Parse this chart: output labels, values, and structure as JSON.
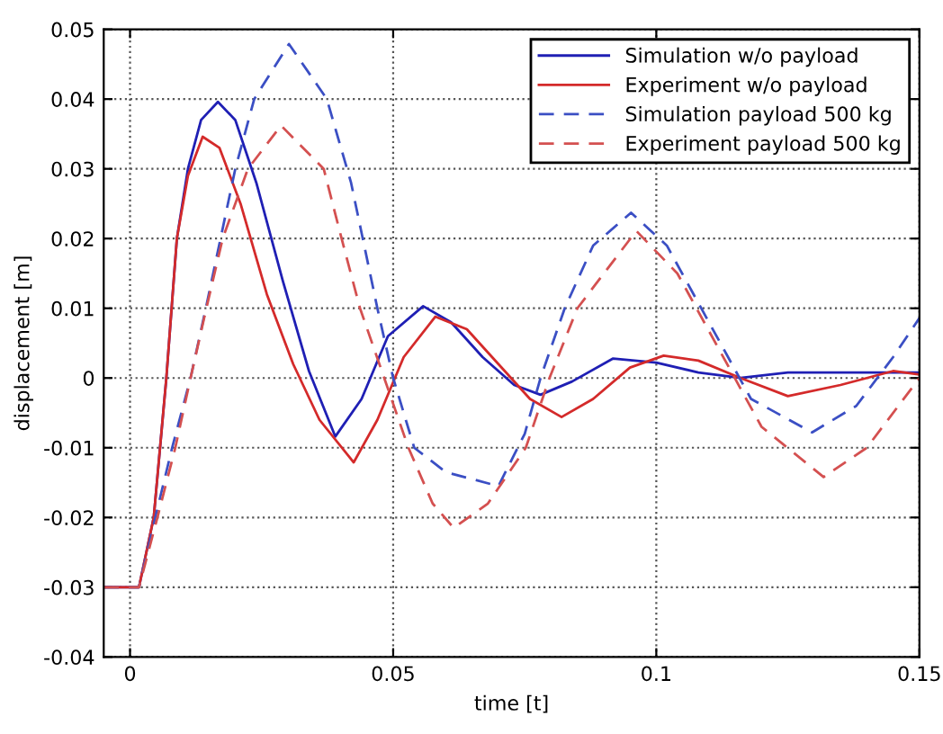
{
  "chart_data": {
    "type": "line",
    "xlabel": "time [t]",
    "ylabel": "displacement [m]",
    "xlim": [
      -0.005,
      0.15
    ],
    "xticks": [
      0,
      0.05,
      0.1,
      0.15
    ],
    "ylim": [
      -0.04,
      0.05
    ],
    "yticks": [
      -0.04,
      -0.03,
      -0.02,
      -0.01,
      0,
      0.01,
      0.02,
      0.03,
      0.04,
      0.05
    ],
    "grid": true,
    "legend": "top right",
    "marker": "none",
    "series": [
      {
        "name": "Simulation w/o payload",
        "color": "#1f1fb4",
        "line_style": "solid",
        "x": [
          -0.005,
          0.0017,
          0.0045,
          0.0057,
          0.0069,
          0.0089,
          0.011,
          0.0135,
          0.0167,
          0.02,
          0.024,
          0.029,
          0.034,
          0.039,
          0.044,
          0.049,
          0.0557,
          0.061,
          0.067,
          0.073,
          0.078,
          0.084,
          0.0918,
          0.1,
          0.108,
          0.116,
          0.125,
          0.135,
          0.15
        ],
        "values": [
          -0.03,
          -0.03,
          -0.02,
          -0.01,
          0,
          0.02,
          0.03,
          0.037,
          0.0396,
          0.037,
          0.028,
          0.014,
          0.001,
          -0.0084,
          -0.003,
          0.006,
          0.0103,
          0.008,
          0.003,
          -0.001,
          -0.0024,
          -0.0005,
          0.0028,
          0.0022,
          0.0008,
          0,
          0.0008,
          0.0008,
          0.0008
        ]
      },
      {
        "name": "Experiment w/o payload",
        "color": "#d42a2a",
        "line_style": "solid",
        "x": [
          -0.005,
          0.0017,
          0.0045,
          0.0057,
          0.0069,
          0.0089,
          0.011,
          0.0138,
          0.017,
          0.021,
          0.026,
          0.031,
          0.036,
          0.0425,
          0.047,
          0.052,
          0.058,
          0.064,
          0.07,
          0.076,
          0.082,
          0.088,
          0.095,
          0.1014,
          0.108,
          0.116,
          0.125,
          0.135,
          0.145,
          0.15
        ],
        "values": [
          -0.03,
          -0.03,
          -0.02,
          -0.01,
          0,
          0.02,
          0.029,
          0.0346,
          0.033,
          0.025,
          0.012,
          0.002,
          -0.006,
          -0.0121,
          -0.006,
          0.003,
          0.0088,
          0.007,
          0.002,
          -0.003,
          -0.0056,
          -0.003,
          0.0015,
          0.0032,
          0.0025,
          0,
          -0.0026,
          -0.001,
          0.001,
          0.0005
        ]
      },
      {
        "name": "Simulation payload 500 kg",
        "color": "#3b4fc4",
        "line_style": "dashed",
        "x": [
          -0.005,
          0.0017,
          0.0048,
          0.008,
          0.0115,
          0.0144,
          0.0172,
          0.02,
          0.0236,
          0.0302,
          0.0374,
          0.042,
          0.047,
          0.05,
          0.054,
          0.06,
          0.07,
          0.075,
          0.078,
          0.0826,
          0.088,
          0.0952,
          0.102,
          0.11,
          0.118,
          0.1296,
          0.138,
          0.145,
          0.15
        ],
        "values": [
          -0.03,
          -0.03,
          -0.02,
          -0.01,
          0,
          0.01,
          0.02,
          0.03,
          0.04,
          0.0479,
          0.04,
          0.028,
          0.01,
          0,
          -0.01,
          -0.0135,
          -0.0155,
          -0.008,
          0,
          0.01,
          0.019,
          0.0237,
          0.019,
          0.008,
          -0.003,
          -0.0078,
          -0.004,
          0.003,
          0.0086
        ]
      },
      {
        "name": "Experiment payload 500 kg",
        "color": "#d45050",
        "line_style": "dashed",
        "x": [
          -0.005,
          0.0017,
          0.0052,
          0.0086,
          0.0115,
          0.0145,
          0.0176,
          0.0224,
          0.0287,
          0.0368,
          0.0402,
          0.0437,
          0.0483,
          0.0529,
          0.0575,
          0.0615,
          0.068,
          0.0752,
          0.0797,
          0.085,
          0.0962,
          0.104,
          0.112,
          0.12,
          0.1318,
          0.14,
          0.15
        ],
        "values": [
          -0.03,
          -0.03,
          -0.02,
          -0.01,
          0,
          0.01,
          0.02,
          0.03,
          0.0362,
          0.03,
          0.02,
          0.01,
          0,
          -0.01,
          -0.018,
          -0.0215,
          -0.018,
          -0.01,
          0,
          0.01,
          0.0211,
          0.015,
          0.004,
          -0.007,
          -0.0142,
          -0.01,
          0
        ]
      }
    ]
  }
}
